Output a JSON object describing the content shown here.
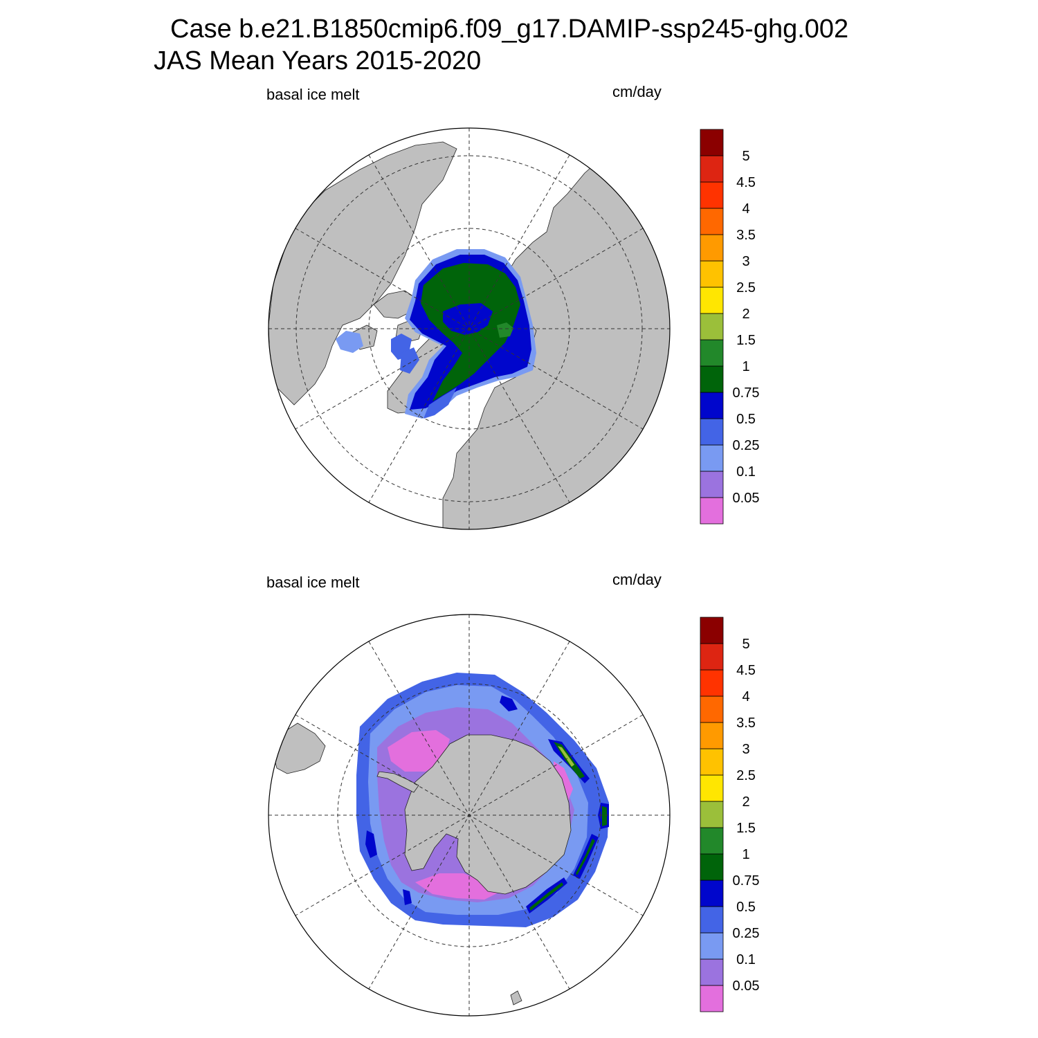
{
  "figure": {
    "title_case": "Case b.e21.B1850cmip6.f09_g17.DAMIP-ssp245-ghg.002",
    "title_period": "JAS Mean   Years 2015-2020"
  },
  "panels": [
    {
      "id": "nh",
      "hemisphere": "north",
      "left_label": "basal ice melt",
      "right_label": "cm/day"
    },
    {
      "id": "sh",
      "hemisphere": "south",
      "left_label": "basal ice melt",
      "right_label": "cm/day"
    }
  ],
  "colorbar": {
    "levels": [
      "0.05",
      "0.1",
      "0.25",
      "0.5",
      "0.75",
      "1",
      "1.5",
      "2",
      "2.5",
      "3",
      "3.5",
      "4",
      "4.5",
      "5"
    ],
    "colors": [
      "#e36fdd",
      "#9b73df",
      "#799af2",
      "#4364e6",
      "#0006cc",
      "#00640a",
      "#22882a",
      "#9bbf3a",
      "#ffe601",
      "#ffc200",
      "#ff9a00",
      "#ff6800",
      "#ff3300",
      "#dd2512",
      "#8b0000"
    ]
  },
  "colors": {
    "land": "#bfbfbf",
    "ocean": "#ffffff",
    "grid": "#333333"
  }
}
